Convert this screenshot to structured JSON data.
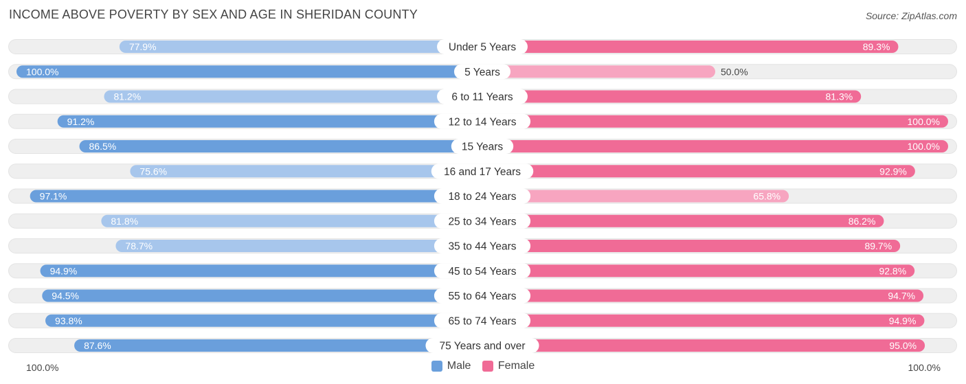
{
  "header": {
    "title": "INCOME ABOVE POVERTY BY SEX AND AGE IN SHERIDAN COUNTY",
    "source": "Source: ZipAtlas.com"
  },
  "legend": {
    "male_label": "Male",
    "female_label": "Female"
  },
  "axis": {
    "left_label": "100.0%",
    "right_label": "100.0%"
  },
  "colors": {
    "male_strong": "#6a9fdc",
    "male_light": "#a7c6ec",
    "female_strong": "#f06b96",
    "female_light": "#f7a5c0",
    "row_bg": "#efefef"
  },
  "chart_data": {
    "type": "bar",
    "orientation": "horizontal-diverging",
    "title": "INCOME ABOVE POVERTY BY SEX AND AGE IN SHERIDAN COUNTY",
    "categories": [
      "Under 5 Years",
      "5 Years",
      "6 to 11 Years",
      "12 to 14 Years",
      "15 Years",
      "16 and 17 Years",
      "18 to 24 Years",
      "25 to 34 Years",
      "35 to 44 Years",
      "45 to 54 Years",
      "55 to 64 Years",
      "65 to 74 Years",
      "75 Years and over"
    ],
    "series": [
      {
        "name": "Male",
        "values": [
          77.9,
          100.0,
          81.2,
          91.2,
          86.5,
          75.6,
          97.1,
          81.8,
          78.7,
          94.9,
          94.5,
          93.8,
          87.6
        ],
        "labels": [
          "77.9%",
          "100.0%",
          "81.2%",
          "91.2%",
          "86.5%",
          "75.6%",
          "97.1%",
          "81.8%",
          "78.7%",
          "94.9%",
          "94.5%",
          "93.8%",
          "87.6%"
        ]
      },
      {
        "name": "Female",
        "values": [
          89.3,
          50.0,
          81.3,
          100.0,
          100.0,
          92.9,
          65.8,
          86.2,
          89.7,
          92.8,
          94.7,
          94.9,
          95.0
        ],
        "labels": [
          "89.3%",
          "50.0%",
          "81.3%",
          "100.0%",
          "100.0%",
          "92.9%",
          "65.8%",
          "86.2%",
          "89.7%",
          "92.8%",
          "94.7%",
          "94.9%",
          "95.0%"
        ]
      }
    ],
    "xlim": [
      0,
      100
    ],
    "legend_position": "bottom-center"
  }
}
